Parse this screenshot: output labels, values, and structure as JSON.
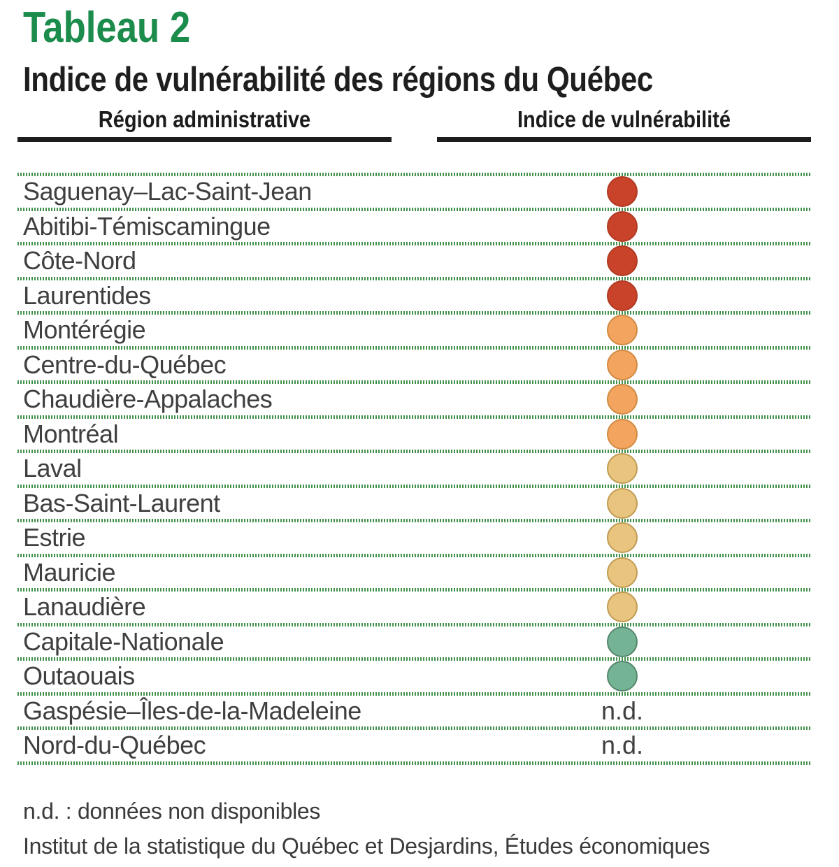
{
  "page": {
    "table_label": "Tableau 2",
    "title": "Indice de vulnérabilité des régions du Québec"
  },
  "colors": {
    "accent_green": "#1B8C4B",
    "separator_green": "#43914C",
    "header_bar_black": "#1D1D1D"
  },
  "table": {
    "columns": [
      "Région administrative",
      "Indice de vulnérabilité"
    ],
    "not_available_label": "n.d.",
    "levels": {
      "high": {
        "fill": "#C8432A",
        "border": "#B13A22"
      },
      "medium-high": {
        "fill": "#F3A55F",
        "border": "#D18A42"
      },
      "medium": {
        "fill": "#E9C47F",
        "border": "#C09B52"
      },
      "low": {
        "fill": "#74B394",
        "border": "#55876D"
      }
    },
    "rows": [
      {
        "region": "Saguenay–Lac-Saint-Jean",
        "level": "high"
      },
      {
        "region": "Abitibi-Témiscamingue",
        "level": "high"
      },
      {
        "region": "Côte-Nord",
        "level": "high"
      },
      {
        "region": "Laurentides",
        "level": "high"
      },
      {
        "region": "Montérégie",
        "level": "medium-high"
      },
      {
        "region": "Centre-du-Québec",
        "level": "medium-high"
      },
      {
        "region": "Chaudière-Appalaches",
        "level": "medium-high"
      },
      {
        "region": "Montréal",
        "level": "medium-high"
      },
      {
        "region": "Laval",
        "level": "medium"
      },
      {
        "region": "Bas-Saint-Laurent",
        "level": "medium"
      },
      {
        "region": "Estrie",
        "level": "medium"
      },
      {
        "region": "Mauricie",
        "level": "medium"
      },
      {
        "region": "Lanaudière",
        "level": "medium"
      },
      {
        "region": "Capitale-Nationale",
        "level": "low"
      },
      {
        "region": "Outaouais",
        "level": "low"
      },
      {
        "region": "Gaspésie–Îles-de-la-Madeleine",
        "level": "nd"
      },
      {
        "region": "Nord-du-Québec",
        "level": "nd"
      }
    ]
  },
  "footnotes": {
    "nd_definition": "n.d. : données non disponibles",
    "source": "Institut de la statistique du Québec et Desjardins, Études économiques"
  }
}
